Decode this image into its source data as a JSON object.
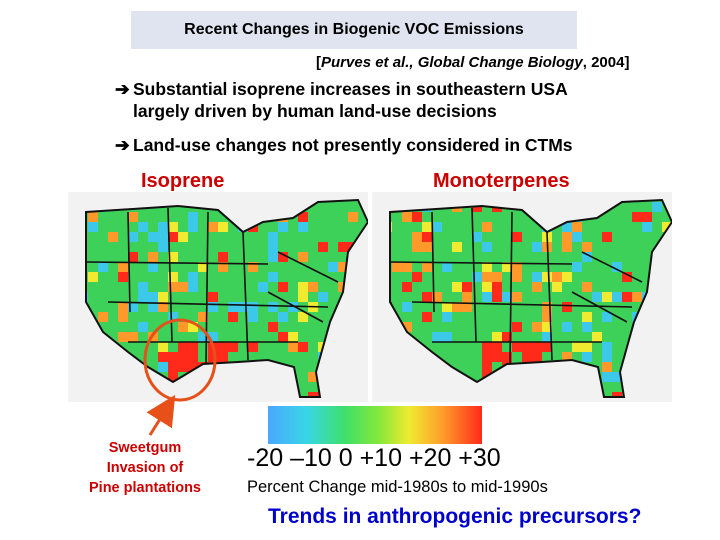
{
  "title": "Recent Changes in Biogenic VOC Emissions",
  "citation": {
    "open": "[",
    "authors": "Purves et al., Global Change Biology",
    "year": ", 2004]"
  },
  "bullets": [
    {
      "arrow": "➔",
      "line1": "Substantial isoprene increases in southeastern USA",
      "line2": "largely driven by human land-use decisions"
    },
    {
      "arrow": "➔",
      "line1": "Land-use changes not presently considered in CTMs"
    }
  ],
  "maps": [
    {
      "label": "Isoprene"
    },
    {
      "label": "Monoterpenes"
    }
  ],
  "colorbar": {
    "scale_text": "-20 –10  0 +10 +20 +30",
    "caption": "Percent Change mid-1980s to mid-1990s"
  },
  "annotation": {
    "lines": [
      "Sweetgum",
      "Invasion of",
      "Pine plantations"
    ]
  },
  "trends": "Trends in anthropogenic precursors?",
  "colors": {
    "accent_red": "#cc0000",
    "accent_blue": "#0000cc",
    "title_bg": "#dfe4f0",
    "map_green": "#3ed15a",
    "map_cyan": "#3cc8e8",
    "map_red": "#ff2a1a",
    "map_orange": "#ff9a2a",
    "map_yellow": "#f0ea30"
  }
}
